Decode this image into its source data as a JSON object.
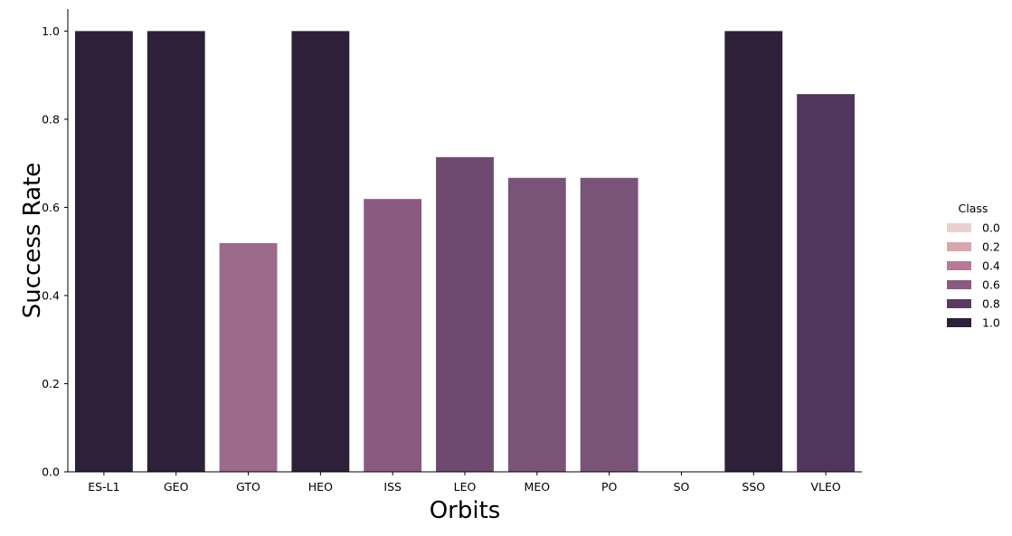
{
  "chart_data": {
    "type": "bar",
    "title": "",
    "xlabel": "Orbits",
    "ylabel": "Success Rate",
    "categories": [
      "ES-L1",
      "GEO",
      "GTO",
      "HEO",
      "ISS",
      "LEO",
      "MEO",
      "PO",
      "SO",
      "SSO",
      "VLEO"
    ],
    "values": [
      1.0,
      1.0,
      0.519,
      1.0,
      0.619,
      0.714,
      0.667,
      0.667,
      0.0,
      1.0,
      0.857
    ],
    "ylim": [
      0,
      1.05
    ],
    "yticks": [
      0.0,
      0.2,
      0.4,
      0.6,
      0.8,
      1.0
    ],
    "ytick_labels": [
      "0.0",
      "0.2",
      "0.4",
      "0.6",
      "0.8",
      "1.0"
    ],
    "grid": false,
    "legend": {
      "title": "Class",
      "placement": "right",
      "entries": [
        {
          "label": "0.0",
          "color": "#e9d2cd"
        },
        {
          "label": "0.2",
          "color": "#d6a6ab"
        },
        {
          "label": "0.4",
          "color": "#b67b98"
        },
        {
          "label": "0.6",
          "color": "#8a5a81"
        },
        {
          "label": "0.8",
          "color": "#5b3a61"
        },
        {
          "label": "1.0",
          "color": "#2d2038"
        }
      ]
    },
    "bar_colors": [
      "#2d2038",
      "#2d2038",
      "#9c6a8a",
      "#2d2038",
      "#8a5a81",
      "#6f4a70",
      "#7a5379",
      "#7a5379",
      "#e9d2cd",
      "#2d2038",
      "#50365c"
    ]
  }
}
